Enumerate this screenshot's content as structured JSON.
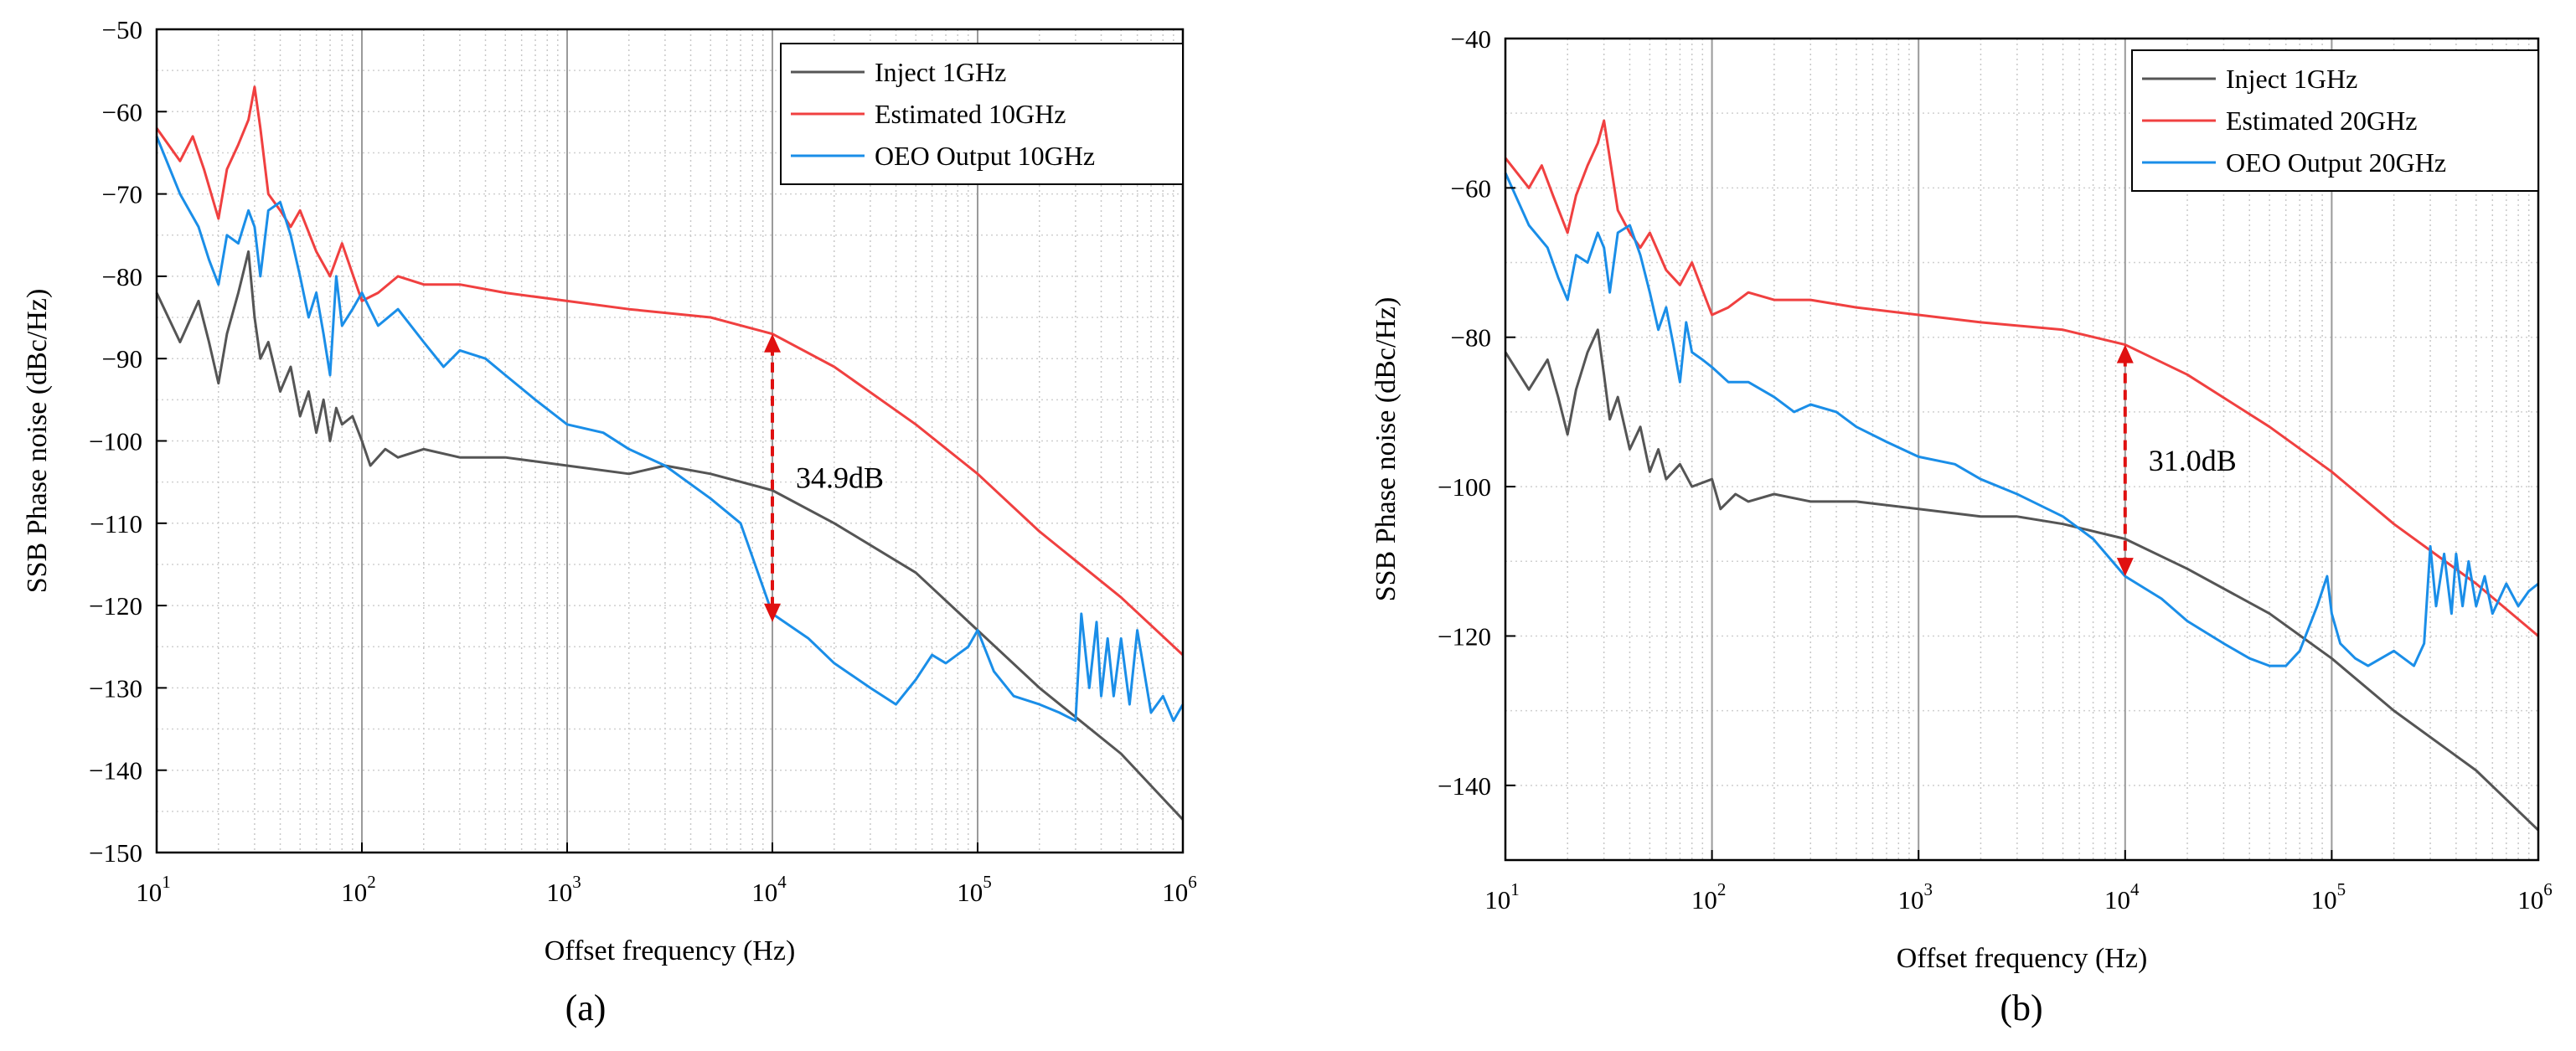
{
  "chart_data": [
    {
      "type": "line",
      "subtitle": "(a)",
      "xlabel": "Offset frequency (Hz)",
      "ylabel": "SSB Phase noise (dBc/Hz)",
      "xscale": "log",
      "xlim": [
        10,
        1000000
      ],
      "ylim": [
        -150,
        -50
      ],
      "x_ticks": [
        {
          "base": "10",
          "exp": "1"
        },
        {
          "base": "10",
          "exp": "2"
        },
        {
          "base": "10",
          "exp": "3"
        },
        {
          "base": "10",
          "exp": "4"
        },
        {
          "base": "10",
          "exp": "5"
        },
        {
          "base": "10",
          "exp": "6"
        }
      ],
      "y_ticks": [
        "−150",
        "−140",
        "−130",
        "−120",
        "−110",
        "−100",
        "−90",
        "−80",
        "−70",
        "−60",
        "−50"
      ],
      "y_tick_values": [
        -150,
        -140,
        -130,
        -120,
        -110,
        -100,
        -90,
        -80,
        -70,
        -60,
        -50
      ],
      "grid": true,
      "legend_position": "top-right",
      "series": [
        {
          "name": "Inject 1GHz",
          "color": "#555555",
          "x": [
            10,
            13,
            16,
            18,
            20,
            22,
            25,
            28,
            30,
            32,
            35,
            40,
            45,
            50,
            55,
            60,
            65,
            70,
            75,
            80,
            90,
            100,
            110,
            130,
            150,
            200,
            300,
            500,
            1000,
            2000,
            3000,
            5000,
            10000,
            20000,
            50000,
            100000,
            200000,
            500000,
            1000000
          ],
          "y": [
            -82,
            -88,
            -83,
            -88,
            -93,
            -87,
            -82,
            -77,
            -85,
            -90,
            -88,
            -94,
            -91,
            -97,
            -94,
            -99,
            -95,
            -100,
            -96,
            -98,
            -97,
            -100,
            -103,
            -101,
            -102,
            -101,
            -102,
            -102,
            -103,
            -104,
            -103,
            -104,
            -106,
            -110,
            -116,
            -123,
            -130,
            -138,
            -146
          ]
        },
        {
          "name": "Estimated 10GHz",
          "color": "#f04040",
          "x": [
            10,
            13,
            15,
            17,
            20,
            22,
            25,
            28,
            30,
            32,
            35,
            40,
            45,
            50,
            60,
            70,
            80,
            100,
            120,
            150,
            200,
            300,
            500,
            1000,
            2000,
            5000,
            10000,
            20000,
            50000,
            100000,
            200000,
            500000,
            1000000
          ],
          "y": [
            -62,
            -66,
            -63,
            -67,
            -73,
            -67,
            -64,
            -61,
            -57,
            -62,
            -70,
            -72,
            -74,
            -72,
            -77,
            -80,
            -76,
            -83,
            -82,
            -80,
            -81,
            -81,
            -82,
            -83,
            -84,
            -85,
            -87,
            -91,
            -98,
            -104,
            -111,
            -119,
            -126
          ]
        },
        {
          "name": "OEO Output 10GHz",
          "color": "#1a8ee8",
          "x": [
            10,
            13,
            16,
            18,
            20,
            22,
            25,
            28,
            30,
            32,
            35,
            40,
            45,
            50,
            55,
            60,
            65,
            70,
            75,
            80,
            90,
            100,
            120,
            150,
            200,
            250,
            300,
            400,
            500,
            700,
            1000,
            1500,
            2000,
            3000,
            5000,
            7000,
            10000,
            15000,
            20000,
            30000,
            40000,
            50000,
            60000,
            70000,
            90000,
            100000,
            120000,
            150000,
            200000,
            250000,
            300000,
            320000,
            350000,
            380000,
            400000,
            430000,
            460000,
            500000,
            550000,
            600000,
            700000,
            800000,
            900000,
            1000000
          ],
          "y": [
            -63,
            -70,
            -74,
            -78,
            -81,
            -75,
            -76,
            -72,
            -74,
            -80,
            -72,
            -71,
            -75,
            -80,
            -85,
            -82,
            -87,
            -92,
            -80,
            -86,
            -84,
            -82,
            -86,
            -84,
            -88,
            -91,
            -89,
            -90,
            -92,
            -95,
            -98,
            -99,
            -101,
            -103,
            -107,
            -110,
            -121,
            -124,
            -127,
            -130,
            -132,
            -129,
            -126,
            -127,
            -125,
            -123,
            -128,
            -131,
            -132,
            -133,
            -134,
            -121,
            -130,
            -122,
            -131,
            -124,
            -131,
            -124,
            -132,
            -123,
            -133,
            -131,
            -134,
            -132
          ]
        }
      ],
      "annotation": {
        "text": "34.9dB",
        "x": 10000,
        "y_top": -87,
        "y_bottom": -122
      }
    },
    {
      "type": "line",
      "subtitle": "(b)",
      "xlabel": "Offset frequency (Hz)",
      "ylabel": "SSB Phase noise (dBc/Hz)",
      "xscale": "log",
      "xlim": [
        10,
        1000000
      ],
      "ylim": [
        -150,
        -40
      ],
      "x_ticks": [
        {
          "base": "10",
          "exp": "1"
        },
        {
          "base": "10",
          "exp": "2"
        },
        {
          "base": "10",
          "exp": "3"
        },
        {
          "base": "10",
          "exp": "4"
        },
        {
          "base": "10",
          "exp": "5"
        },
        {
          "base": "10",
          "exp": "6"
        }
      ],
      "y_ticks": [
        "−140",
        "−120",
        "−100",
        "−80",
        "−60",
        "−40"
      ],
      "y_tick_values": [
        -140,
        -120,
        -100,
        -80,
        -60,
        -40
      ],
      "grid": true,
      "legend_position": "top-right",
      "series": [
        {
          "name": "Inject 1GHz",
          "color": "#555555",
          "x": [
            10,
            13,
            16,
            18,
            20,
            22,
            25,
            28,
            30,
            32,
            35,
            40,
            45,
            50,
            55,
            60,
            70,
            80,
            100,
            110,
            130,
            150,
            200,
            300,
            500,
            1000,
            2000,
            3000,
            5000,
            10000,
            20000,
            50000,
            100000,
            200000,
            500000,
            1000000
          ],
          "y": [
            -82,
            -87,
            -83,
            -88,
            -93,
            -87,
            -82,
            -79,
            -85,
            -91,
            -88,
            -95,
            -92,
            -98,
            -95,
            -99,
            -97,
            -100,
            -99,
            -103,
            -101,
            -102,
            -101,
            -102,
            -102,
            -103,
            -104,
            -104,
            -105,
            -107,
            -111,
            -117,
            -123,
            -130,
            -138,
            -146
          ]
        },
        {
          "name": "Estimated 20GHz",
          "color": "#f04040",
          "x": [
            10,
            13,
            15,
            17,
            20,
            22,
            25,
            28,
            30,
            32,
            35,
            40,
            45,
            50,
            60,
            70,
            80,
            100,
            120,
            150,
            200,
            300,
            500,
            1000,
            2000,
            5000,
            10000,
            20000,
            50000,
            100000,
            200000,
            500000,
            1000000
          ],
          "y": [
            -56,
            -60,
            -57,
            -61,
            -66,
            -61,
            -57,
            -54,
            -51,
            -56,
            -63,
            -66,
            -68,
            -66,
            -71,
            -73,
            -70,
            -77,
            -76,
            -74,
            -75,
            -75,
            -76,
            -77,
            -78,
            -79,
            -81,
            -85,
            -92,
            -98,
            -105,
            -113,
            -120
          ]
        },
        {
          "name": "OEO Output 20GHz",
          "color": "#1a8ee8",
          "x": [
            10,
            13,
            16,
            18,
            20,
            22,
            25,
            28,
            30,
            32,
            35,
            40,
            45,
            50,
            55,
            60,
            65,
            70,
            75,
            80,
            90,
            100,
            120,
            150,
            200,
            250,
            300,
            400,
            500,
            700,
            1000,
            1500,
            2000,
            3000,
            5000,
            7000,
            10000,
            15000,
            20000,
            30000,
            40000,
            50000,
            60000,
            70000,
            85000,
            95000,
            100000,
            110000,
            130000,
            150000,
            200000,
            250000,
            280000,
            300000,
            320000,
            350000,
            380000,
            400000,
            430000,
            460000,
            500000,
            550000,
            600000,
            700000,
            800000,
            900000,
            1000000
          ],
          "y": [
            -58,
            -65,
            -68,
            -72,
            -75,
            -69,
            -70,
            -66,
            -68,
            -74,
            -66,
            -65,
            -69,
            -74,
            -79,
            -76,
            -81,
            -86,
            -78,
            -82,
            -83,
            -84,
            -86,
            -86,
            -88,
            -90,
            -89,
            -90,
            -92,
            -94,
            -96,
            -97,
            -99,
            -101,
            -104,
            -107,
            -112,
            -115,
            -118,
            -121,
            -123,
            -124,
            -124,
            -122,
            -116,
            -112,
            -117,
            -121,
            -123,
            -124,
            -122,
            -124,
            -121,
            -108,
            -116,
            -109,
            -117,
            -109,
            -116,
            -110,
            -116,
            -112,
            -117,
            -113,
            -116,
            -114,
            -113
          ]
        }
      ],
      "annotation": {
        "text": "31.0dB",
        "x": 10000,
        "y_top": -81,
        "y_bottom": -112
      }
    }
  ]
}
